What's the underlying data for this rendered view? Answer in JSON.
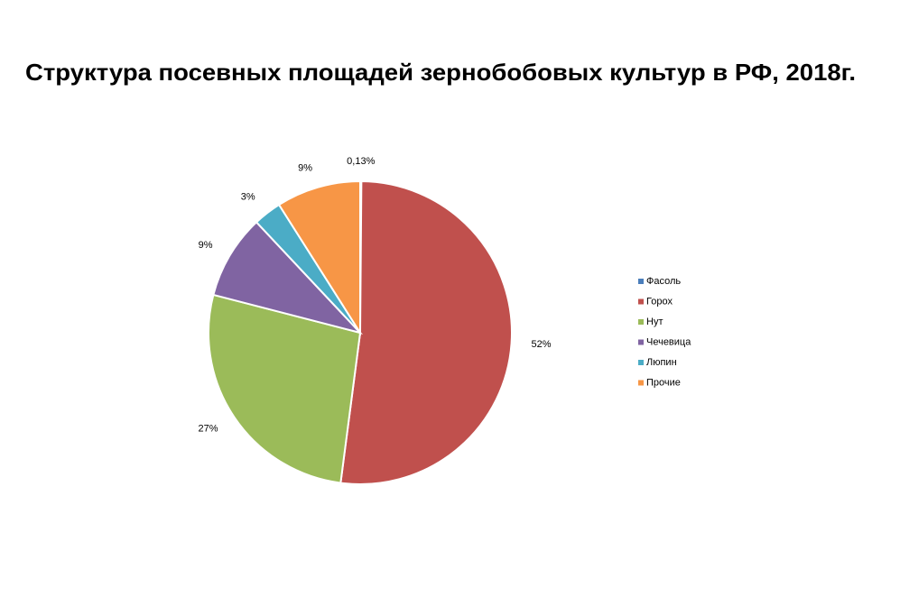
{
  "chart_data": {
    "type": "pie",
    "title": "Структура посевных площадей зернобобовых культур в РФ, 2018г.",
    "categories": [
      "Фасоль",
      "Горох",
      "Нут",
      "Чечевица",
      "Люпин",
      "Прочие"
    ],
    "values": [
      0.13,
      52,
      27,
      9,
      3,
      9
    ],
    "value_labels": [
      "0,13%",
      "52%",
      "27%",
      "9%",
      "3%",
      "9%"
    ],
    "colors": [
      "#4a7ebb",
      "#c0504d",
      "#9bbb59",
      "#8064a2",
      "#4bacc6",
      "#f79646"
    ],
    "legend": "right"
  }
}
